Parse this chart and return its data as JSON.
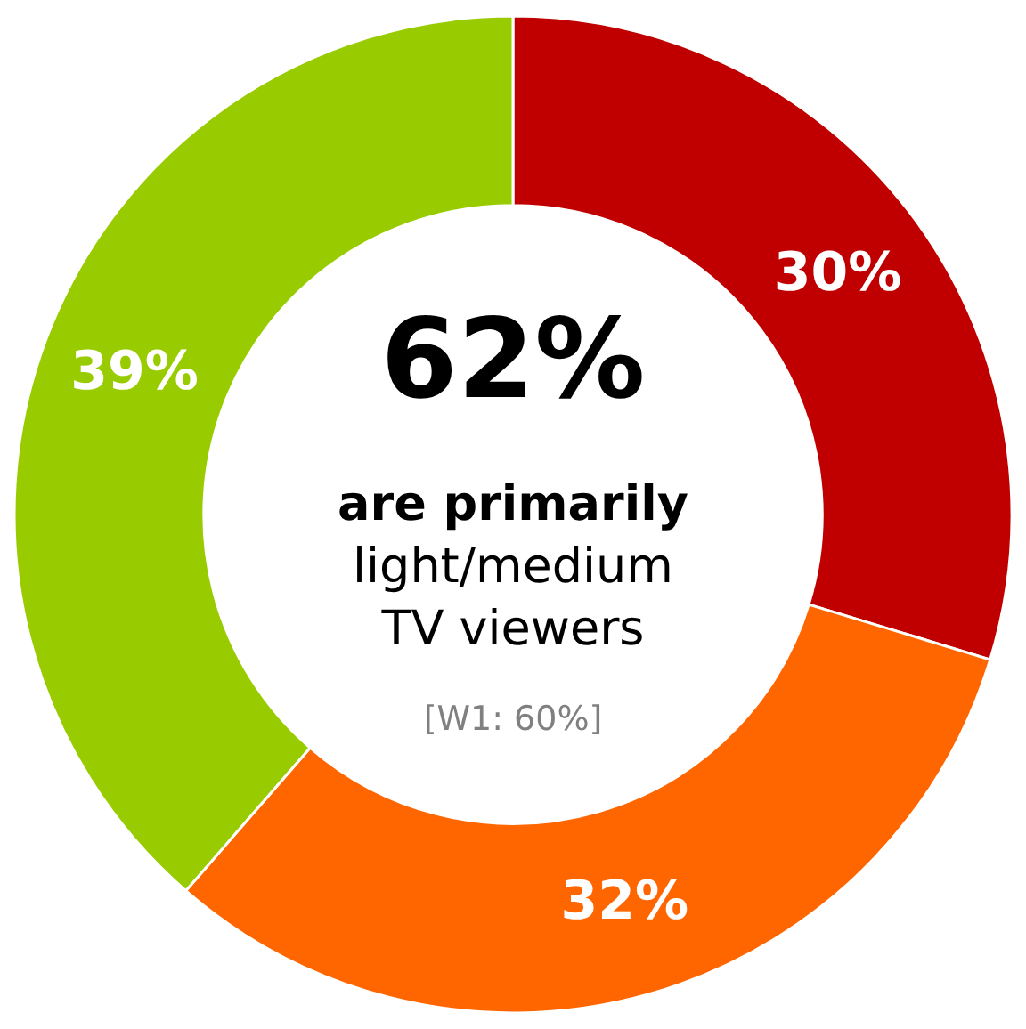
{
  "chart_data": {
    "type": "donut",
    "categories": [
      null,
      null,
      null
    ],
    "values": [
      30,
      32,
      39
    ],
    "colors": [
      "#c00000",
      "#ff6600",
      "#99cc00"
    ],
    "value_labels": [
      "30%",
      "32%",
      "39%"
    ],
    "annotations": [
      "62%",
      "are primarily",
      "light/medium",
      "TV viewers",
      "[W1: 60%]"
    ]
  }
}
